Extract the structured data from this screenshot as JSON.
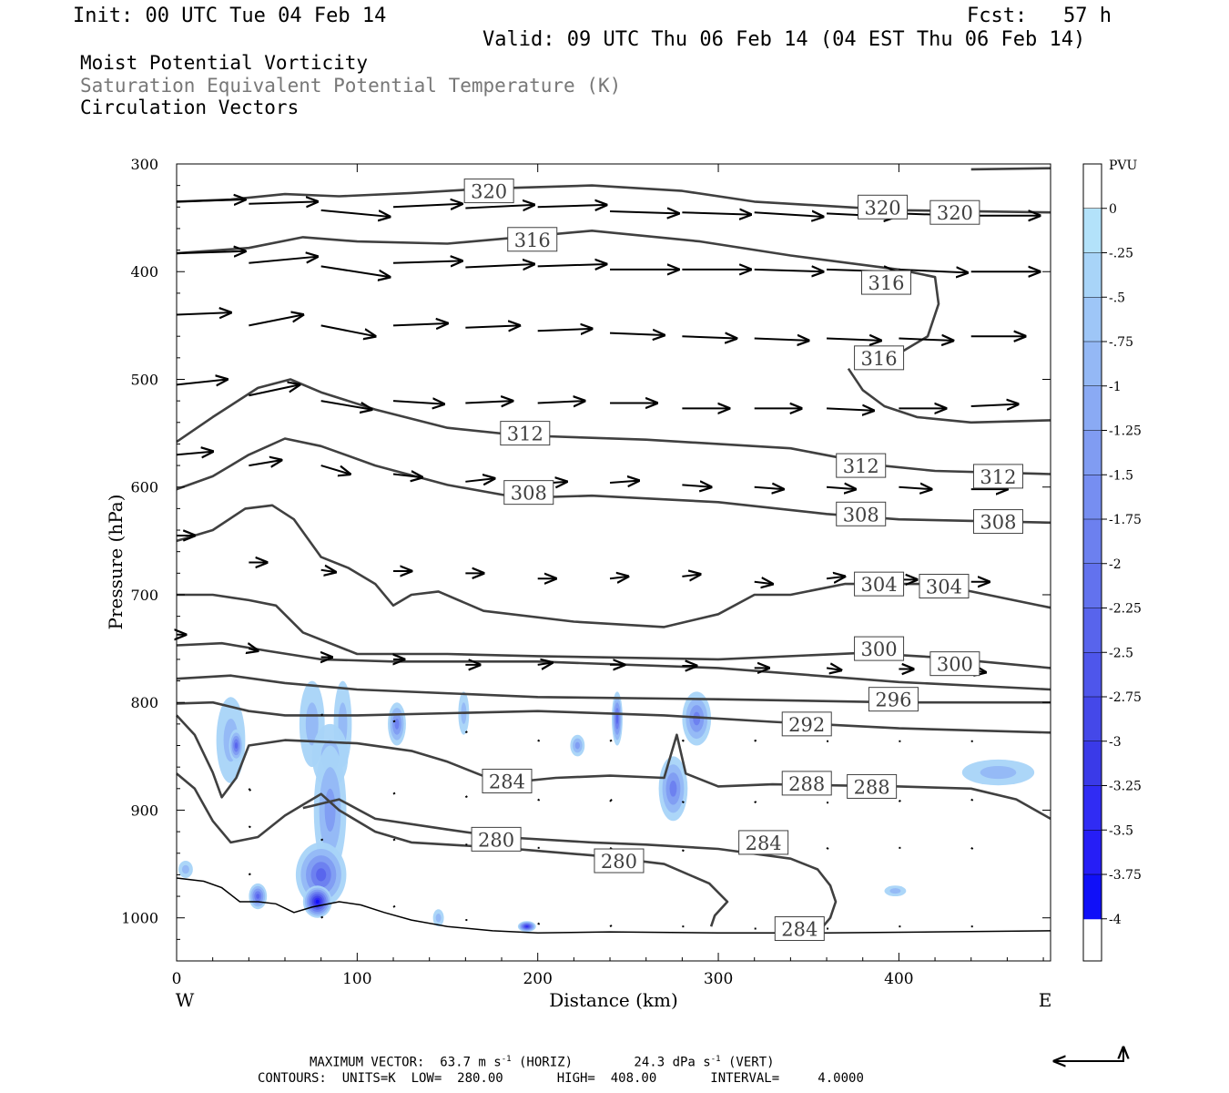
{
  "header": {
    "init": "Init: 00 UTC Tue 04 Feb 14",
    "fcst": "Fcst:   57 h",
    "valid": "Valid: 09 UTC Thu 06 Feb 14 (04 EST Thu 06 Feb 14)",
    "field1": "Moist Potential Vorticity",
    "field2": "Saturation Equivalent Potential Temperature (K)",
    "field3": "Circulation Vectors"
  },
  "footer": {
    "max_vector": "MAXIMUM VECTOR:  63.7 m s-1 (HORIZ)        24.3 dPa s-1 (VERT)",
    "contours": "CONTOURS:  UNITS=K  LOW=  280.00       HIGH=  408.00       INTERVAL=     4.0000"
  },
  "colors": {
    "contour": "#404040",
    "shade_light": "#a8d8f8",
    "shade_dark": "#1010f0"
  },
  "chart_data": {
    "type": "cross-section",
    "xlabel": "Distance (km)",
    "ylabel": "Pressure (hPa)",
    "x_end_labels": [
      "W",
      "E"
    ],
    "xlim": [
      0,
      484
    ],
    "ylim": [
      1040,
      300
    ],
    "x_ticks": [
      0,
      100,
      200,
      300,
      400
    ],
    "y_ticks": [
      300,
      400,
      500,
      600,
      700,
      800,
      900,
      1000
    ],
    "colorbar": {
      "title": "PVU",
      "labels": [
        "0",
        "-.25",
        "-.5",
        "-.75",
        "-1",
        "-1.25",
        "-1.5",
        "-1.75",
        "-2",
        "-2.25",
        "-2.5",
        "-2.75",
        "-3",
        "-3.25",
        "-3.5",
        "-3.75",
        "-4"
      ],
      "colors": [
        "#ffffff",
        "#b3e2fa",
        "#a8d4f8",
        "#9ec6f7",
        "#94b8f5",
        "#8aaaf4",
        "#809cf2",
        "#768ef1",
        "#6c80ef",
        "#6272ee",
        "#5864ec",
        "#4e56eb",
        "#4448e9",
        "#3a3ae8",
        "#302cf4",
        "#261ef6",
        "#1010f8"
      ]
    },
    "contour_labels": [
      {
        "value": "320",
        "x": 173,
        "p": 325
      },
      {
        "value": "320",
        "x": 391,
        "p": 340
      },
      {
        "value": "320",
        "x": 431,
        "p": 345
      },
      {
        "value": "316",
        "x": 197,
        "p": 370
      },
      {
        "value": "316",
        "x": 393,
        "p": 410
      },
      {
        "value": "316",
        "x": 389,
        "p": 480
      },
      {
        "value": "312",
        "x": 193,
        "p": 550
      },
      {
        "value": "312",
        "x": 379,
        "p": 580
      },
      {
        "value": "312",
        "x": 455,
        "p": 590
      },
      {
        "value": "308",
        "x": 195,
        "p": 605
      },
      {
        "value": "308",
        "x": 379,
        "p": 625
      },
      {
        "value": "308",
        "x": 455,
        "p": 632
      },
      {
        "value": "304",
        "x": 389,
        "p": 690
      },
      {
        "value": "304",
        "x": 425,
        "p": 692
      },
      {
        "value": "300",
        "x": 389,
        "p": 750
      },
      {
        "value": "300",
        "x": 431,
        "p": 764
      },
      {
        "value": "296",
        "x": 397,
        "p": 797
      },
      {
        "value": "292",
        "x": 349,
        "p": 820
      },
      {
        "value": "288",
        "x": 349,
        "p": 875
      },
      {
        "value": "288",
        "x": 385,
        "p": 878
      },
      {
        "value": "284",
        "x": 183,
        "p": 873
      },
      {
        "value": "284",
        "x": 325,
        "p": 930
      },
      {
        "value": "284",
        "x": 345,
        "p": 1010
      },
      {
        "value": "280",
        "x": 177,
        "p": 927
      },
      {
        "value": "280",
        "x": 245,
        "p": 947
      }
    ]
  }
}
